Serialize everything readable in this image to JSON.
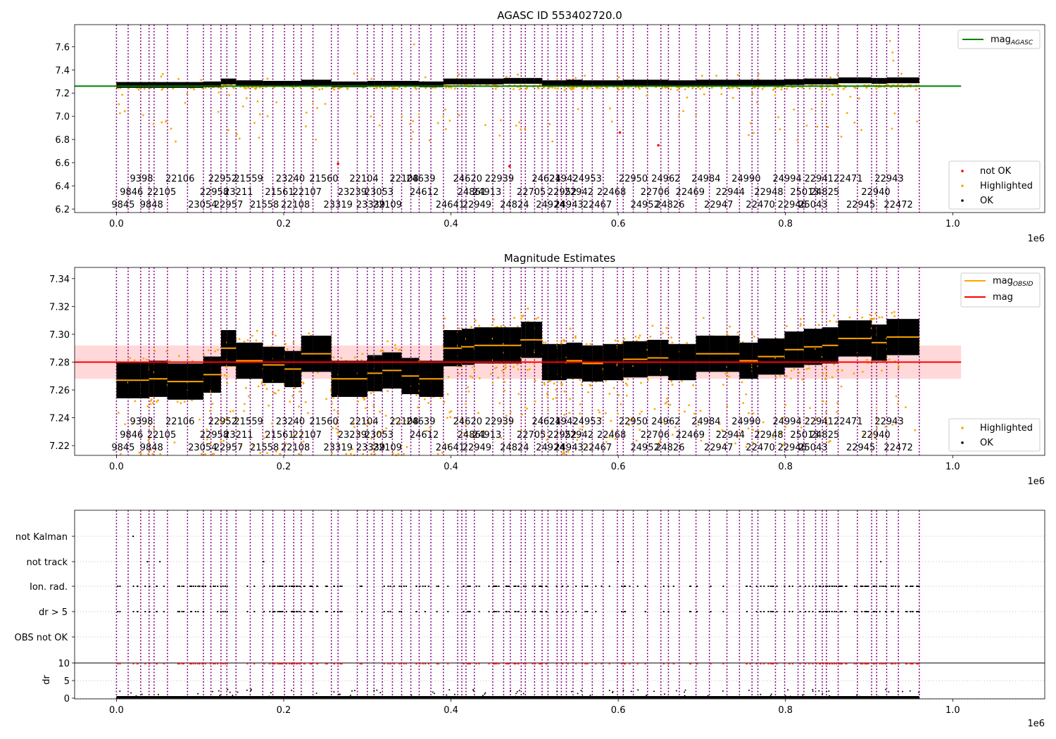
{
  "chart_data": [
    {
      "type": "scatter",
      "title": "AGASC ID 553402720.0",
      "xlim": [
        -50000,
        1110000
      ],
      "ylim": [
        6.17,
        7.79
      ],
      "yticks": [
        6.2,
        6.4,
        6.6,
        6.8,
        7.0,
        7.2,
        7.4,
        7.6
      ],
      "xticks": [
        0.0,
        0.2,
        0.4,
        0.6,
        0.8,
        1.0
      ],
      "x_multiplier": "1e6",
      "legend_upper": [
        "mag_AGASC"
      ],
      "legend_upper_colors": [
        "#008000"
      ],
      "legend_lower": [
        "not OK",
        "Highlighted",
        "OK"
      ],
      "legend_lower_colors": [
        "#ff0000",
        "#ffa500",
        "#000000"
      ],
      "mag_agasc": 7.26,
      "series": [
        {
          "name": "OK",
          "color": "#000000",
          "description_level": 7.27,
          "x_start": 0,
          "x_end": 960000
        },
        {
          "name": "Highlighted",
          "color": "#ffa500"
        },
        {
          "name": "not OK",
          "color": "#ff0000",
          "points": [
            [
              265000,
              6.59
            ],
            [
              470000,
              6.57
            ],
            [
              602000,
              6.86
            ],
            [
              648000,
              6.75
            ]
          ]
        }
      ],
      "grid": false
    },
    {
      "type": "scatter",
      "title": "Magnitude Estimates",
      "xlim": [
        -50000,
        1110000
      ],
      "ylim": [
        7.213,
        7.348
      ],
      "yticks": [
        7.22,
        7.24,
        7.26,
        7.28,
        7.3,
        7.32,
        7.34
      ],
      "xticks": [
        0.0,
        0.2,
        0.4,
        0.6,
        0.8,
        1.0
      ],
      "x_multiplier": "1e6",
      "legend_upper": [
        "mag_OBSID",
        "mag"
      ],
      "legend_upper_colors": [
        "#ffa500",
        "#ff0000"
      ],
      "legend_lower": [
        "Highlighted",
        "OK"
      ],
      "legend_lower_colors": [
        "#ffa500",
        "#000000"
      ],
      "mag": 7.28,
      "mag_band": [
        7.268,
        7.292
      ],
      "obsid_mag_means": [
        7.267,
        7.268,
        7.266,
        7.271,
        7.29,
        7.281,
        7.278,
        7.275,
        7.286,
        7.268,
        7.272,
        7.274,
        7.27,
        7.268,
        7.29,
        7.291,
        7.292,
        7.292,
        7.296,
        7.28,
        7.28,
        7.281,
        7.279,
        7.28,
        7.282,
        7.283,
        7.28,
        7.286,
        7.281,
        7.284,
        7.289,
        7.291,
        7.292,
        7.297,
        7.294,
        7.298
      ],
      "grid": false
    },
    {
      "type": "scatter",
      "title": "",
      "xlim": [
        -50000,
        1110000
      ],
      "xticks": [
        0.0,
        0.2,
        0.4,
        0.6,
        0.8,
        1.0
      ],
      "x_multiplier": "1e6",
      "flag_categories": [
        "not Kalman",
        "not track",
        "Ion. rad.",
        "dr > 5",
        "OBS not OK"
      ],
      "dr_ylabel": "dr",
      "dr_yticks": [
        0,
        5,
        10
      ],
      "dr_threshold": 10,
      "grid": true
    }
  ],
  "obsid_boundaries": [
    0,
    14000,
    29000,
    39000,
    45000,
    61000,
    85000,
    104000,
    113000,
    125000,
    132000,
    143000,
    160000,
    175000,
    187000,
    201000,
    212000,
    221000,
    235000,
    257000,
    265000,
    288000,
    300000,
    308000,
    318000,
    330000,
    341000,
    352000,
    362000,
    376000,
    391000,
    408000,
    413000,
    418000,
    428000,
    450000,
    463000,
    471000,
    484000,
    489000,
    500000,
    509000,
    516000,
    527000,
    532000,
    538000,
    546000,
    557000,
    569000,
    582000,
    599000,
    606000,
    618000,
    635000,
    651000,
    660000,
    673000,
    693000,
    709000,
    730000,
    745000,
    760000,
    767000,
    788000,
    799000,
    815000,
    822000,
    836000,
    844000,
    849000,
    863000,
    886000,
    903000,
    909000,
    921000,
    935000,
    960000
  ],
  "obsid_labels": {
    "row_top": [
      {
        "x": 30000,
        "text": "9398"
      },
      {
        "x": 76000,
        "text": "22106"
      },
      {
        "x": 127000,
        "text": "22952"
      },
      {
        "x": 158000,
        "text": "21559"
      },
      {
        "x": 208000,
        "text": "23240"
      },
      {
        "x": 248000,
        "text": "21560"
      },
      {
        "x": 296000,
        "text": "22104"
      },
      {
        "x": 344000,
        "text": "22108"
      },
      {
        "x": 364000,
        "text": "24639"
      },
      {
        "x": 420000,
        "text": "24620"
      },
      {
        "x": 458000,
        "text": "22939"
      },
      {
        "x": 514000,
        "text": "24621"
      },
      {
        "x": 535000,
        "text": "24942"
      },
      {
        "x": 563000,
        "text": "24953"
      },
      {
        "x": 618000,
        "text": "22950"
      },
      {
        "x": 657000,
        "text": "24962"
      },
      {
        "x": 705000,
        "text": "24984"
      },
      {
        "x": 753000,
        "text": "24990"
      },
      {
        "x": 802000,
        "text": "24994"
      },
      {
        "x": 840000,
        "text": "22941"
      },
      {
        "x": 875000,
        "text": "22471"
      },
      {
        "x": 924000,
        "text": "22943"
      }
    ],
    "row_middle": [
      {
        "x": 18000,
        "text": "9846"
      },
      {
        "x": 54000,
        "text": "22105"
      },
      {
        "x": 117000,
        "text": "22958"
      },
      {
        "x": 146000,
        "text": "23211"
      },
      {
        "x": 195000,
        "text": "21561"
      },
      {
        "x": 228000,
        "text": "22107"
      },
      {
        "x": 282000,
        "text": "23239"
      },
      {
        "x": 314000,
        "text": "23053"
      },
      {
        "x": 368000,
        "text": "24612"
      },
      {
        "x": 425000,
        "text": "24861"
      },
      {
        "x": 443000,
        "text": "24913"
      },
      {
        "x": 496000,
        "text": "22705"
      },
      {
        "x": 533000,
        "text": "22952"
      },
      {
        "x": 553000,
        "text": "22942"
      },
      {
        "x": 592000,
        "text": "22468"
      },
      {
        "x": 644000,
        "text": "22706"
      },
      {
        "x": 686000,
        "text": "22469"
      },
      {
        "x": 734000,
        "text": "22944"
      },
      {
        "x": 780000,
        "text": "22948"
      },
      {
        "x": 823000,
        "text": "25013"
      },
      {
        "x": 847000,
        "text": "24825"
      },
      {
        "x": 908000,
        "text": "22940"
      }
    ],
    "row_bottom": [
      {
        "x": 8000,
        "text": "9845"
      },
      {
        "x": 42000,
        "text": "9848"
      },
      {
        "x": 103000,
        "text": "23054"
      },
      {
        "x": 134000,
        "text": "22957"
      },
      {
        "x": 177000,
        "text": "21558"
      },
      {
        "x": 214000,
        "text": "22108"
      },
      {
        "x": 265000,
        "text": "23319"
      },
      {
        "x": 304000,
        "text": "23339"
      },
      {
        "x": 324000,
        "text": "22109"
      },
      {
        "x": 399000,
        "text": "24641"
      },
      {
        "x": 431000,
        "text": "22949"
      },
      {
        "x": 476000,
        "text": "24824"
      },
      {
        "x": 519000,
        "text": "24924"
      },
      {
        "x": 541000,
        "text": "24943"
      },
      {
        "x": 575000,
        "text": "22467"
      },
      {
        "x": 632000,
        "text": "24952"
      },
      {
        "x": 662000,
        "text": "24826"
      },
      {
        "x": 720000,
        "text": "22947"
      },
      {
        "x": 770000,
        "text": "22470"
      },
      {
        "x": 808000,
        "text": "22946"
      },
      {
        "x": 833000,
        "text": "25043"
      },
      {
        "x": 890000,
        "text": "22945"
      },
      {
        "x": 935000,
        "text": "22472"
      }
    ]
  },
  "colors": {
    "ok": "#000000",
    "highlighted": "#ffa500",
    "not_ok": "#ff0000",
    "agasc_line": "#008000",
    "mag_line": "#ff0000",
    "obsid_line": "#ffa500",
    "boundary": "#800080",
    "band": "#ffc0c0"
  }
}
